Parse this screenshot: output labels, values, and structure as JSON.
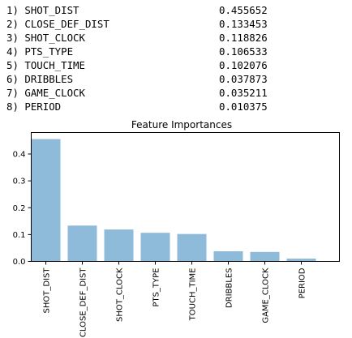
{
  "ranking": [
    {
      "label": "1) SHOT_DIST",
      "value": "0.455652"
    },
    {
      "label": "2) CLOSE_DEF_DIST",
      "value": "0.133453"
    },
    {
      "label": "3) SHOT_CLOCK",
      "value": "0.118826"
    },
    {
      "label": "4) PTS_TYPE",
      "value": "0.106533"
    },
    {
      "label": "5) TOUCH_TIME",
      "value": "0.102076"
    },
    {
      "label": "6) DRIBBLES",
      "value": "0.037873"
    },
    {
      "label": "7) GAME_CLOCK",
      "value": "0.035211"
    },
    {
      "label": "8) PERIOD",
      "value": "0.010375"
    }
  ],
  "chart_data": {
    "type": "bar",
    "title": "Feature Importances",
    "xlabel": "",
    "ylabel": "",
    "categories": [
      "SHOT_DIST",
      "CLOSE_DEF_DIST",
      "SHOT_CLOCK",
      "PTS_TYPE",
      "TOUCH_TIME",
      "DRIBBLES",
      "GAME_CLOCK",
      "PERIOD"
    ],
    "values": [
      0.455652,
      0.133453,
      0.118826,
      0.106533,
      0.102076,
      0.037873,
      0.035211,
      0.010375
    ],
    "ylim": [
      0,
      0.48
    ],
    "yticks": [
      0.0,
      0.1,
      0.2,
      0.3,
      0.4
    ],
    "ytick_labels": [
      "0.0",
      "0.1",
      "0.2",
      "0.3",
      "0.4"
    ],
    "grid": false,
    "bar_color": "#8fbbdb"
  }
}
